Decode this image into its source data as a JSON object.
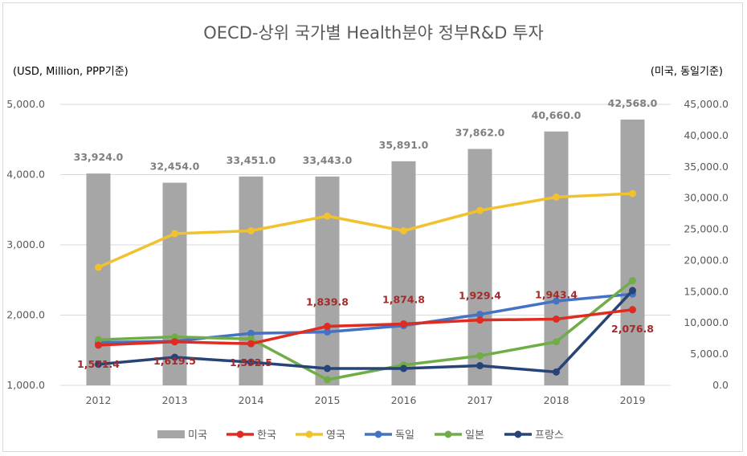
{
  "chart_data": {
    "type": "bar+line",
    "title": "OECD-상위 국가별 Health분야 정부R&D 투자",
    "left_axis_unit": "(USD, Million, PPP기준)",
    "right_axis_unit": "(미국, 동일기준)",
    "categories": [
      "2012",
      "2013",
      "2014",
      "2015",
      "2016",
      "2017",
      "2018",
      "2019"
    ],
    "left_ylim": [
      1000,
      5000
    ],
    "left_ticks": [
      "1,000.0",
      "2,000.0",
      "3,000.0",
      "4,000.0",
      "5,000.0"
    ],
    "left_tick_values": [
      1000,
      2000,
      3000,
      4000,
      5000
    ],
    "right_ylim": [
      0,
      45000
    ],
    "right_ticks": [
      "0.0",
      "5,000.0",
      "10,000.0",
      "15,000.0",
      "20,000.0",
      "25,000.0",
      "30,000.0",
      "35,000.0",
      "40,000.0",
      "45,000.0"
    ],
    "right_tick_values": [
      0,
      5000,
      10000,
      15000,
      20000,
      25000,
      30000,
      35000,
      40000,
      45000
    ],
    "grid": true,
    "legend_position": "bottom",
    "bar_series": {
      "name": "미국",
      "axis": "right",
      "color": "#a6a6a6",
      "values": [
        33924.0,
        32454.0,
        33451.0,
        33443.0,
        35891.0,
        37862.0,
        40660.0,
        42568.0
      ],
      "labels": [
        "33,924.0",
        "32,454.0",
        "33,451.0",
        "33,443.0",
        "35,891.0",
        "37,862.0",
        "40,660.0",
        "42,568.0"
      ]
    },
    "line_series": [
      {
        "name": "한국",
        "color": "#e02b20",
        "values": [
          1571.4,
          1619.5,
          1592.5,
          1839.8,
          1874.8,
          1929.4,
          1943.4,
          2076.8
        ],
        "labels": [
          "1,571.4",
          "1,619.5",
          "1,592.5",
          "1,839.8",
          "1,874.8",
          "1,929.4",
          "1,943.4",
          "2,076.8"
        ]
      },
      {
        "name": "영국",
        "color": "#f2c12e",
        "values": [
          2680,
          3160,
          3200,
          3410,
          3200,
          3490,
          3680,
          3730
        ]
      },
      {
        "name": "독일",
        "color": "#4472c4",
        "values": [
          1610,
          1630,
          1740,
          1760,
          1850,
          2010,
          2200,
          2300
        ]
      },
      {
        "name": "일본",
        "color": "#70ad47",
        "values": [
          1650,
          1690,
          1660,
          1080,
          1290,
          1420,
          1620,
          2490
        ]
      },
      {
        "name": "프랑스",
        "color": "#264478",
        "values": [
          1300,
          1400,
          1330,
          1240,
          1240,
          1280,
          1190,
          2350
        ]
      }
    ]
  }
}
